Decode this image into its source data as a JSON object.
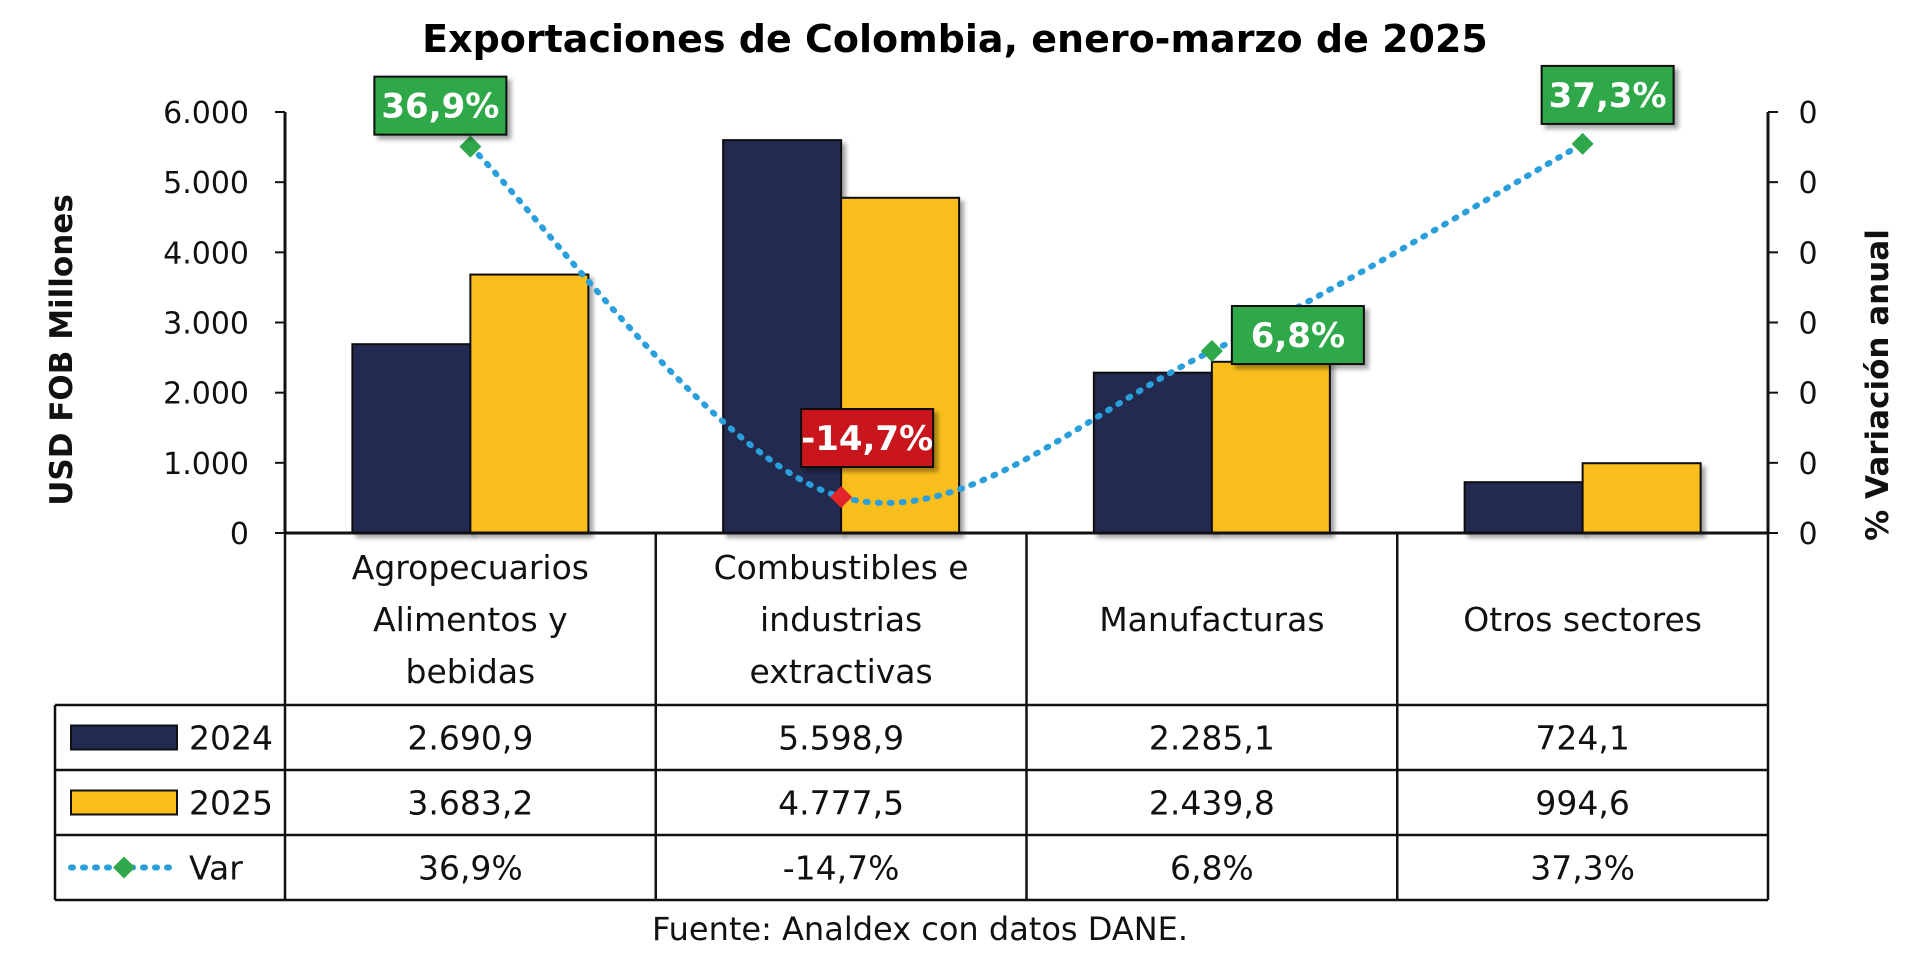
{
  "chart_data": {
    "type": "bar",
    "title": "Exportaciones de Colombia, enero-marzo de 2025",
    "ylabel": "USD FOB Millones",
    "y2label": "% Variación anual",
    "ylim": [
      0,
      6000
    ],
    "yticks": [
      "0",
      "1.000",
      "2.000",
      "3.000",
      "4.000",
      "5.000",
      "6.000"
    ],
    "y2ticks": [
      "0",
      "0",
      "0",
      "0",
      "0",
      "0",
      "0"
    ],
    "categories": [
      [
        "Agropecuarios",
        "Alimentos y",
        "bebidas"
      ],
      [
        "Combustibles e",
        "industrias",
        "extractivas"
      ],
      [
        "Manufacturas"
      ],
      [
        "Otros sectores"
      ]
    ],
    "series": [
      {
        "name": "2024",
        "color": "#222B4F",
        "values": [
          2690.9,
          5598.9,
          2285.1,
          724.1
        ],
        "labels": [
          "2.690,9",
          "5.598,9",
          "2.285,1",
          "724,1"
        ]
      },
      {
        "name": "2025",
        "color": "#F9BE1A",
        "values": [
          3683.2,
          4777.5,
          2439.8,
          994.6
        ],
        "labels": [
          "3.683,2",
          "4.777,5",
          "2.439,8",
          "994,6"
        ]
      }
    ],
    "variation": {
      "name": "Var",
      "color": "#2A9FDB",
      "values": [
        36.9,
        -14.7,
        6.8,
        37.3
      ],
      "table_labels": [
        "36,9%",
        "-14,7%",
        "6,8%",
        "37,3%"
      ],
      "data_labels": [
        "36,9%",
        "-14,7%",
        "6,8%",
        "37,3%"
      ],
      "positive_color": "#2EA84A",
      "negative_color": "#C8171C"
    },
    "source": "Fuente: Analdex con datos DANE."
  }
}
